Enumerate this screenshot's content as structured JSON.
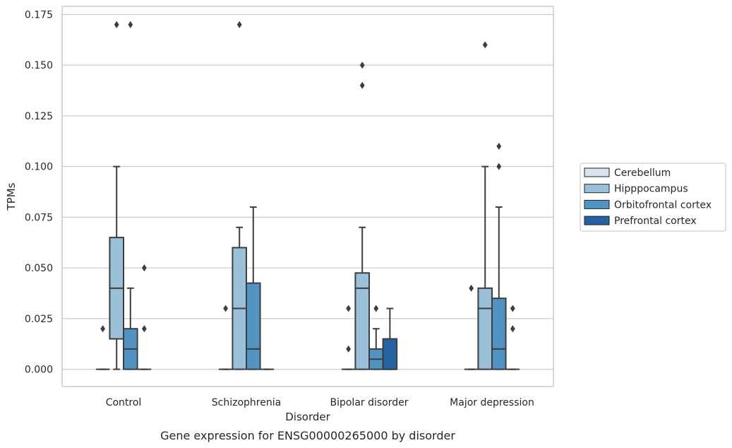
{
  "chart_data": {
    "type": "boxplot",
    "caption": "Gene expression for ENSG00000265000 by disorder",
    "xlabel": "Disorder",
    "ylabel": "TPMs",
    "ylim": [
      -0.0085,
      0.179
    ],
    "yticks": [
      0.0,
      0.025,
      0.05,
      0.075,
      0.1,
      0.125,
      0.15,
      0.175
    ],
    "ytick_labels": [
      "0.000",
      "0.025",
      "0.050",
      "0.075",
      "0.100",
      "0.125",
      "0.150",
      "0.175"
    ],
    "grid": true,
    "legend_position": "right",
    "categories": [
      "Control",
      "Schizophrenia",
      "Bipolar disorder",
      "Major depression"
    ],
    "series": [
      {
        "name": "Cerebellum",
        "color": "#d5e4f1",
        "boxes": [
          {
            "min": 0.0,
            "q1": 0.0,
            "median": 0.0,
            "q3": 0.0,
            "max": 0.0,
            "outliers": [
              0.02
            ]
          },
          {
            "min": 0.0,
            "q1": 0.0,
            "median": 0.0,
            "q3": 0.0,
            "max": 0.0,
            "outliers": [
              0.03
            ]
          },
          {
            "min": 0.0,
            "q1": 0.0,
            "median": 0.0,
            "q3": 0.0,
            "max": 0.0,
            "outliers": [
              0.03,
              0.01
            ]
          },
          {
            "min": 0.0,
            "q1": 0.0,
            "median": 0.0,
            "q3": 0.0,
            "max": 0.0,
            "outliers": [
              0.04
            ]
          }
        ]
      },
      {
        "name": "Hipppocampus",
        "color": "#9ac0da",
        "boxes": [
          {
            "min": 0.0,
            "q1": 0.015,
            "median": 0.04,
            "q3": 0.065,
            "max": 0.1,
            "outliers": [
              0.17
            ]
          },
          {
            "min": 0.0,
            "q1": 0.0,
            "median": 0.03,
            "q3": 0.06,
            "max": 0.07,
            "outliers": [
              0.17
            ]
          },
          {
            "min": 0.0,
            "q1": 0.0,
            "median": 0.04,
            "q3": 0.0475,
            "max": 0.07,
            "outliers": [
              0.15,
              0.14
            ]
          },
          {
            "min": 0.0,
            "q1": 0.0,
            "median": 0.03,
            "q3": 0.04,
            "max": 0.1,
            "outliers": [
              0.16
            ]
          }
        ]
      },
      {
        "name": "Orbitofrontal cortex",
        "color": "#5193c2",
        "boxes": [
          {
            "min": 0.0,
            "q1": 0.0,
            "median": 0.01,
            "q3": 0.02,
            "max": 0.04,
            "outliers": [
              0.17
            ]
          },
          {
            "min": 0.0,
            "q1": 0.0,
            "median": 0.01,
            "q3": 0.0425,
            "max": 0.08,
            "outliers": []
          },
          {
            "min": 0.0,
            "q1": 0.0,
            "median": 0.005,
            "q3": 0.01,
            "max": 0.02,
            "outliers": [
              0.03
            ]
          },
          {
            "min": 0.0,
            "q1": 0.0,
            "median": 0.01,
            "q3": 0.035,
            "max": 0.08,
            "outliers": [
              0.11,
              0.1
            ]
          }
        ]
      },
      {
        "name": "Prefrontal cortex",
        "color": "#2562a0",
        "boxes": [
          {
            "min": 0.0,
            "q1": 0.0,
            "median": 0.0,
            "q3": 0.0,
            "max": 0.0,
            "outliers": [
              0.05,
              0.02
            ]
          },
          {
            "min": 0.0,
            "q1": 0.0,
            "median": 0.0,
            "q3": 0.0,
            "max": 0.0,
            "outliers": []
          },
          {
            "min": 0.0,
            "q1": 0.0,
            "median": 0.0,
            "q3": 0.015,
            "max": 0.03,
            "outliers": []
          },
          {
            "min": 0.0,
            "q1": 0.0,
            "median": 0.0,
            "q3": 0.0,
            "max": 0.0,
            "outliers": [
              0.03,
              0.02
            ]
          }
        ]
      }
    ]
  }
}
